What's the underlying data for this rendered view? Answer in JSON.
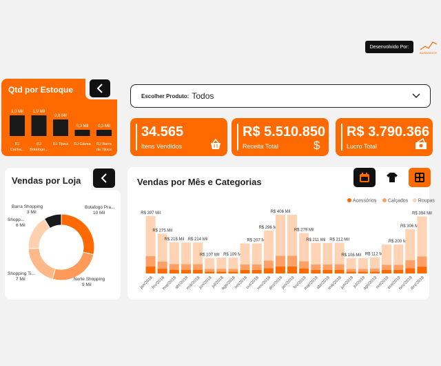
{
  "header": {
    "developer_label": "Desenvolvido Por:",
    "logo_text": "BARRASHOP"
  },
  "stock": {
    "title": "Qtd por Estoque",
    "bars": [
      {
        "label1": "RJ",
        "label2": "Cacha...",
        "value_label": "1,0 Mil",
        "value": 1.0
      },
      {
        "label1": "RJ",
        "label2": "Botafogo...",
        "value_label": "1,0 Mil",
        "value": 1.0
      },
      {
        "label1": "RJ Tijuca",
        "label2": "",
        "value_label": "0,8 Mil",
        "value": 0.8
      },
      {
        "label1": "RJ Gávea",
        "label2": "",
        "value_label": "0,3 Mil",
        "value": 0.3
      },
      {
        "label1": "RJ Barra",
        "label2": "da Tijuca",
        "value_label": "0,3 Mil",
        "value": 0.3
      }
    ]
  },
  "filter": {
    "label": "Escolher Produto:",
    "value": "Todos"
  },
  "kpis": [
    {
      "value": "34.565",
      "label": "Itens Vendidos",
      "icon": "shopping-basket-icon"
    },
    {
      "value": "R$ 5.510.850",
      "label": "Receita Total",
      "icon": "dollar-icon"
    },
    {
      "value": "R$ 3.790.366",
      "label": "Lucro Total",
      "icon": "money-icon"
    }
  ],
  "store_sales": {
    "title": "Vendas por Loja",
    "slices": [
      {
        "name": "Botafogo Pra...",
        "value_label": "10 Mil",
        "value": 10,
        "color": "#ff6a00"
      },
      {
        "name": "Norte Shopping",
        "value_label": "9 Mil",
        "value": 9,
        "color": "#ff9a5a"
      },
      {
        "name": "Shopping Ti...",
        "value_label": "7 Mil",
        "value": 7,
        "color": "#ffb888"
      },
      {
        "name": "Shopp...",
        "value_label": "6 Mil",
        "value": 6,
        "color": "#ffd1b0"
      },
      {
        "name": "Barra Shopping",
        "value_label": "3 Mil",
        "value": 3,
        "color": "#1a1a1a"
      }
    ]
  },
  "monthly": {
    "title": "Vendas por Mês e Categorias",
    "legend": [
      {
        "name": "Acessórios",
        "color": "#ff6a00"
      },
      {
        "name": "Calçados",
        "color": "#ffa066"
      },
      {
        "name": "Roupas",
        "color": "#ffd3b3"
      }
    ]
  },
  "chart_data": {
    "type": "bar",
    "categories": [
      "jan/2018",
      "fev/2018",
      "mar/2018",
      "abr/2018",
      "mai/2018",
      "jun/2018",
      "jul/2018",
      "ago/2018",
      "set/2018",
      "out/2018",
      "nov/2018",
      "dez/2018",
      "jan/2019",
      "fev/2019",
      "mar/2019",
      "abr/2019",
      "mai/2019",
      "jun/2019",
      "jul/2019",
      "ago/2019",
      "set/2019",
      "out/2019",
      "nov/2019",
      "dez/2019"
    ],
    "totals": [
      397,
      275,
      215,
      214,
      214,
      107,
      109,
      109,
      207,
      207,
      296,
      406,
      406,
      279,
      211,
      211,
      212,
      106,
      106,
      112,
      200,
      200,
      306,
      394
    ],
    "data_labels": [
      "R$ 397 Mil",
      "R$ 275 Mil",
      "R$ 215 Mil",
      "",
      "R$ 214 Mil",
      "R$ 107 Mil",
      "",
      "R$ 109 Mil",
      "",
      "R$ 207 Mil",
      "R$ 296 Mil",
      "R$ 406 Mil",
      "",
      "R$ 279 Mil",
      "R$ 211 Mil",
      "",
      "R$ 212 Mil",
      "R$ 106 Mil",
      "",
      "R$ 112 Mil",
      "",
      "R$ 200 Mil",
      "R$ 306 Mil",
      "R$ 394 Mil"
    ],
    "series": [
      {
        "name": "Acessórios",
        "share": 0.12
      },
      {
        "name": "Calçados",
        "share": 0.18
      },
      {
        "name": "Roupas",
        "share": 0.7
      }
    ],
    "ylim": [
      0,
      420
    ]
  }
}
